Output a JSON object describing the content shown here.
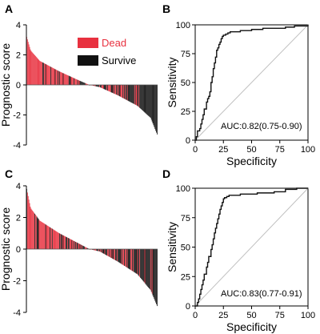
{
  "panels": {
    "A": {
      "label": "A"
    },
    "B": {
      "label": "B"
    },
    "C": {
      "label": "C"
    },
    "D": {
      "label": "D"
    }
  },
  "colors": {
    "dead": "#e8313f",
    "survive": "#111111",
    "roc_line": "#111111",
    "diagonal": "#bfbfbf"
  },
  "chart_data": [
    {
      "panel": "A",
      "type": "bar",
      "ylabel": "Prognostic score",
      "ylim": [
        -4,
        4
      ],
      "yticks": [
        -4,
        -2,
        0,
        2,
        4
      ],
      "legend": {
        "placement": "top-right",
        "entries": [
          {
            "label": "Dead",
            "color": "#e8313f"
          },
          {
            "label": "Survive",
            "color": "#111111"
          }
        ]
      },
      "n_samples": 180,
      "score_profile": [
        [
          0,
          3.2
        ],
        [
          0.03,
          2.3
        ],
        [
          0.1,
          1.6
        ],
        [
          0.25,
          0.9
        ],
        [
          0.4,
          0.3
        ],
        [
          0.48,
          0.0
        ],
        [
          0.56,
          -0.15
        ],
        [
          0.7,
          -0.7
        ],
        [
          0.85,
          -1.4
        ],
        [
          0.95,
          -2.2
        ],
        [
          1.0,
          -3.3
        ]
      ]
    },
    {
      "panel": "B",
      "type": "line",
      "xlabel": "Specificity",
      "ylabel": "Sensitivity",
      "xlim": [
        0,
        100
      ],
      "ylim": [
        0,
        100
      ],
      "xticks": [
        0,
        25,
        50,
        75,
        100
      ],
      "yticks": [
        0,
        25,
        50,
        75,
        100
      ],
      "annotation": "AUC:0.82(0.75-0.90)",
      "reference_line": [
        [
          0,
          0
        ],
        [
          100,
          100
        ]
      ],
      "x": [
        0,
        1,
        2,
        2,
        4,
        5,
        6,
        7,
        8,
        10,
        11,
        12,
        13,
        14,
        14,
        15,
        16,
        16,
        17,
        18,
        19,
        19,
        20,
        21,
        22,
        23,
        24,
        25,
        27,
        29,
        31,
        35,
        40,
        50,
        60,
        70,
        80,
        88,
        94,
        100
      ],
      "y": [
        0,
        3,
        5,
        8,
        10,
        14,
        18,
        22,
        27,
        33,
        36,
        38,
        42,
        45,
        50,
        55,
        58,
        62,
        67,
        72,
        75,
        78,
        80,
        83,
        85,
        88,
        90,
        91,
        92,
        93,
        94,
        94,
        95,
        96,
        97,
        97,
        98,
        99,
        99,
        100
      ]
    },
    {
      "panel": "C",
      "type": "bar",
      "ylabel": "Prognostic score",
      "ylim": [
        -4,
        4
      ],
      "yticks": [
        -4,
        -2,
        0,
        2,
        4
      ],
      "n_samples": 180,
      "score_profile": [
        [
          0,
          3.8
        ],
        [
          0.03,
          2.6
        ],
        [
          0.1,
          1.8
        ],
        [
          0.25,
          1.0
        ],
        [
          0.4,
          0.35
        ],
        [
          0.48,
          0.0
        ],
        [
          0.56,
          -0.15
        ],
        [
          0.7,
          -0.8
        ],
        [
          0.85,
          -1.6
        ],
        [
          0.95,
          -2.6
        ],
        [
          1.0,
          -3.6
        ]
      ]
    },
    {
      "panel": "D",
      "type": "line",
      "xlabel": "Specificity",
      "ylabel": "Sensitivity",
      "xlim": [
        0,
        100
      ],
      "ylim": [
        0,
        100
      ],
      "xticks": [
        0,
        25,
        50,
        75,
        100
      ],
      "yticks": [
        0,
        25,
        50,
        75,
        100
      ],
      "annotation": "AUC:0.83(0.77-0.91)",
      "reference_line": [
        [
          0,
          0
        ],
        [
          100,
          100
        ]
      ],
      "x": [
        0,
        2,
        3,
        4,
        5,
        6,
        7,
        8,
        10,
        11,
        12,
        14,
        15,
        16,
        17,
        18,
        19,
        20,
        21,
        22,
        23,
        24,
        25,
        26,
        28,
        30,
        33,
        40,
        55,
        70,
        80,
        90,
        100
      ],
      "y": [
        0,
        3,
        6,
        10,
        14,
        18,
        22,
        27,
        33,
        37,
        42,
        48,
        52,
        57,
        62,
        66,
        70,
        74,
        78,
        82,
        85,
        88,
        91,
        92,
        93,
        94,
        94,
        95,
        96,
        97,
        99,
        100,
        100
      ]
    }
  ]
}
